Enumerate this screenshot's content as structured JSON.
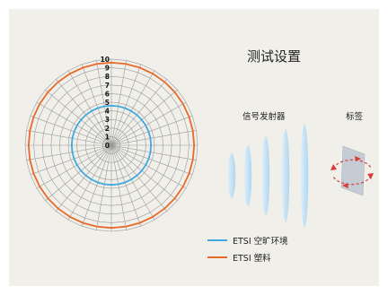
{
  "title": "测试设置",
  "transmitter_label": "信号发射器",
  "tag_label": "标签",
  "colors": {
    "background": "#f0efe9",
    "grid": "#9a9a9a",
    "series_1": "#3fa9e0",
    "series_2": "#e8692a"
  },
  "radar": {
    "ticks": [
      "0",
      "1",
      "2",
      "3",
      "4",
      "5",
      "6",
      "7",
      "8",
      "9",
      "10"
    ],
    "max": 10,
    "spokes": 36
  },
  "chart_data": {
    "type": "radar",
    "r_ticks": [
      0,
      1,
      2,
      3,
      4,
      5,
      6,
      7,
      8,
      9,
      10
    ],
    "rlim": [
      0,
      10
    ],
    "series": [
      {
        "name": "ETSI 空旷环境",
        "value": 4.6
      },
      {
        "name": "ETSI 塑料",
        "value": 9.6
      }
    ]
  },
  "legend": [
    {
      "label": "ETSI 空旷环境",
      "color": "#3fa9e0"
    },
    {
      "label": "ETSI 塑料",
      "color": "#e8692a"
    }
  ]
}
